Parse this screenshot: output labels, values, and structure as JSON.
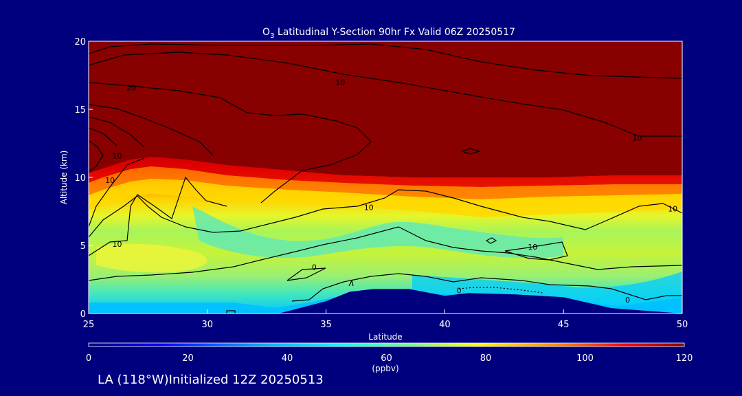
{
  "chart_data": {
    "type": "heatmap",
    "title_prefix": "O",
    "title_subscript": "3",
    "title_rest": " Latitudinal Y-Section 90hr  Fx Valid 06Z 20250517",
    "xlabel": "Latitude",
    "ylabel": "Altitude (km)",
    "xlim": [
      25,
      50
    ],
    "ylim": [
      0,
      20
    ],
    "x_ticks": [
      "25",
      "30",
      "35",
      "40",
      "45",
      "50"
    ],
    "y_ticks": [
      "0",
      "5",
      "10",
      "15",
      "20"
    ],
    "colorbar": {
      "min": 0,
      "max": 120,
      "unit": "(ppbv)",
      "ticks": [
        "0",
        "20",
        "40",
        "60",
        "80",
        "100",
        "120"
      ]
    },
    "terrain_top_km": [
      [
        25,
        0
      ],
      [
        33,
        0
      ],
      [
        35,
        0.9
      ],
      [
        36,
        1.6
      ],
      [
        37,
        1.8
      ],
      [
        38.5,
        1.8
      ],
      [
        40,
        1.3
      ],
      [
        41,
        1.5
      ],
      [
        43,
        1.4
      ],
      [
        45,
        1.2
      ],
      [
        46,
        0.8
      ],
      [
        47,
        0.4
      ],
      [
        50,
        0
      ]
    ],
    "ozone_ppbv_levels_by_altitude_km": [
      {
        "alt_km": 0.5,
        "ppbv": 40
      },
      {
        "alt_km": 2,
        "ppbv": 60
      },
      {
        "alt_km": 4,
        "ppbv": 72
      },
      {
        "alt_km": 7,
        "ppbv": 70
      },
      {
        "alt_km": 9,
        "ppbv": 95
      },
      {
        "alt_km": 11,
        "ppbv": 120
      }
    ],
    "contour_labels": [
      {
        "text": "20",
        "lat": 26.8,
        "alt_km": 16.6
      },
      {
        "text": "10",
        "lat": 35.6,
        "alt_km": 17.0
      },
      {
        "text": "10",
        "lat": 48.1,
        "alt_km": 12.9
      },
      {
        "text": "10",
        "lat": 26.2,
        "alt_km": 11.6
      },
      {
        "text": "10",
        "lat": 25.9,
        "alt_km": 9.8
      },
      {
        "text": "10",
        "lat": 36.8,
        "alt_km": 7.8
      },
      {
        "text": "10",
        "lat": 49.6,
        "alt_km": 7.7
      },
      {
        "text": "10",
        "lat": 26.2,
        "alt_km": 5.1
      },
      {
        "text": "10",
        "lat": 43.7,
        "alt_km": 4.9
      },
      {
        "text": "0",
        "lat": 34.5,
        "alt_km": 3.4
      },
      {
        "text": "0",
        "lat": 40.6,
        "alt_km": 1.7
      },
      {
        "text": "0",
        "lat": 47.7,
        "alt_km": 1.0
      }
    ]
  },
  "footer": {
    "text": "LA (118°W)Initialized 12Z 20250513"
  }
}
